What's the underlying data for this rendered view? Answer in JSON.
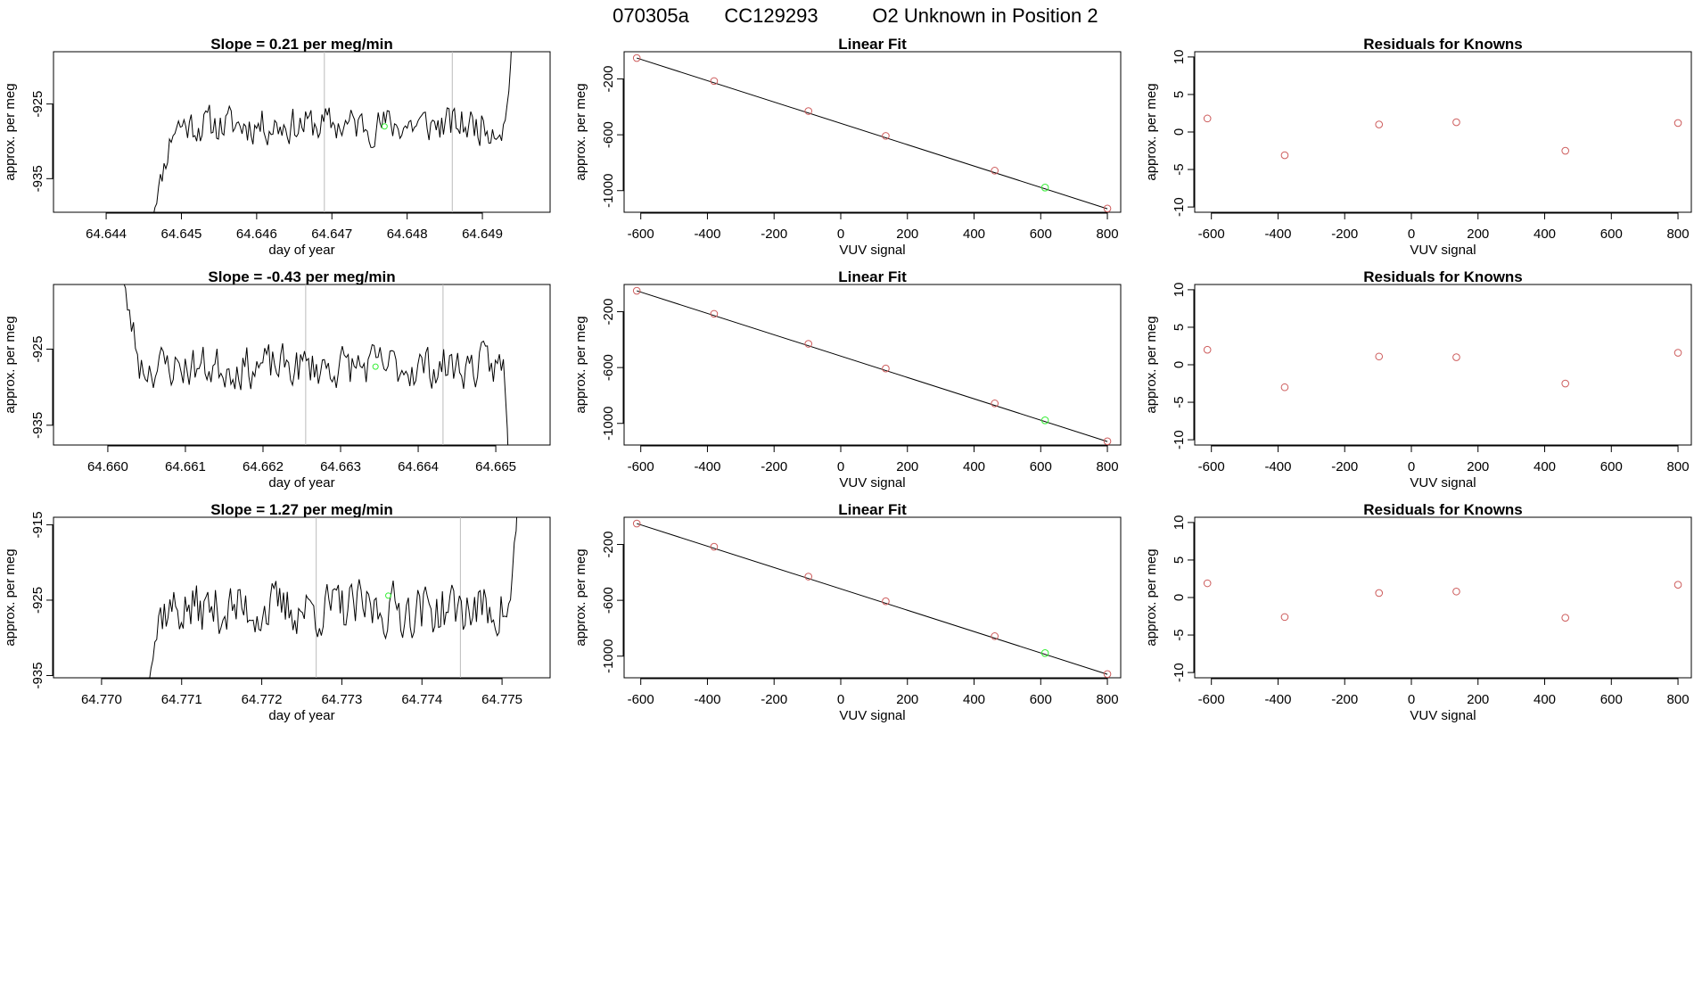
{
  "figure": {
    "title_parts": [
      "070305a",
      "CC129293",
      "O2 Unknown in Position  2"
    ]
  },
  "colors": {
    "line": "#000000",
    "known": "#cd5c5c",
    "unknown": "#33ee33",
    "gridline": "#bbbbbb"
  },
  "chart_data": [
    {
      "type": "line",
      "row": 0,
      "title": "Slope =  0.21  per meg/min",
      "xlabel": "day of year",
      "ylabel": "approx. per meg",
      "xlim": [
        64.6433,
        64.6499
      ],
      "ylim": [
        -939.5,
        -918.0
      ],
      "xticks": [
        64.644,
        64.645,
        64.646,
        64.647,
        64.648,
        64.649
      ],
      "xtick_labels": [
        "64.644",
        "64.645",
        "64.646",
        "64.647",
        "64.648",
        "64.649"
      ],
      "yticks": [
        -925,
        -935
      ],
      "ytick_labels": [
        "-925",
        "-935"
      ],
      "vlines": [
        64.6469,
        64.6486
      ],
      "marker": {
        "x": 64.6477,
        "y": -928.0
      },
      "series": {
        "start": 64.6446,
        "end": 64.6494,
        "n": 200,
        "base": -927.8,
        "amp": 1.4,
        "seed": 11,
        "pre_start": -942,
        "pre_len": 12,
        "tail_rise": 10
      }
    },
    {
      "type": "scatter",
      "row": 0,
      "title": "Linear Fit",
      "xlabel": "VUV signal",
      "ylabel": "approx. per meg",
      "xlim": [
        -650,
        840
      ],
      "ylim": [
        -1155,
        -5
      ],
      "xticks": [
        -600,
        -400,
        -200,
        0,
        200,
        400,
        600,
        800
      ],
      "xtick_labels": [
        "-600",
        "-400",
        "-200",
        "0",
        "200",
        "400",
        "600",
        "800"
      ],
      "yticks": [
        -200,
        -600,
        -1000
      ],
      "ytick_labels": [
        "-200",
        "-600",
        "-1000"
      ],
      "fit_line": {
        "x": [
          -612,
          800
        ],
        "y": [
          -50,
          -1130
        ]
      },
      "known": {
        "x": [
          -612,
          -380,
          -97,
          135,
          462,
          800
        ],
        "y": [
          -50,
          -215,
          -430,
          -608,
          -857,
          -1128
        ]
      },
      "unknown": {
        "x": [
          613
        ],
        "y": [
          -978
        ]
      }
    },
    {
      "type": "scatter",
      "row": 0,
      "title": "Residuals for Knowns",
      "xlabel": "VUV signal",
      "ylabel": "approx. per meg",
      "xlim": [
        -650,
        840
      ],
      "ylim": [
        -10.7,
        10.7
      ],
      "xticks": [
        -600,
        -400,
        -200,
        0,
        200,
        400,
        600,
        800
      ],
      "xtick_labels": [
        "-600",
        "-400",
        "-200",
        "0",
        "200",
        "400",
        "600",
        "800"
      ],
      "yticks": [
        10,
        5,
        0,
        -5,
        -10
      ],
      "ytick_labels": [
        "10",
        "5",
        "0",
        "-5",
        "-10"
      ],
      "known": {
        "x": [
          -612,
          -380,
          -97,
          135,
          462,
          800
        ],
        "y": [
          1.8,
          -3.1,
          1.0,
          1.3,
          -2.5,
          1.2
        ]
      }
    },
    {
      "type": "line",
      "row": 1,
      "title": "Slope =  -0.43  per meg/min",
      "xlabel": "day of year",
      "ylabel": "approx. per meg",
      "xlim": [
        64.6593,
        64.6657
      ],
      "ylim": [
        -937.6,
        -916.5
      ],
      "xticks": [
        64.66,
        64.661,
        64.662,
        64.663,
        64.664,
        64.665
      ],
      "xtick_labels": [
        "64.660",
        "64.661",
        "64.662",
        "64.663",
        "64.664",
        "64.665"
      ],
      "yticks": [
        -925,
        -935
      ],
      "ytick_labels": [
        "-925",
        "-935"
      ],
      "vlines": [
        64.66255,
        64.66432
      ],
      "marker": {
        "x": 64.66345,
        "y": -927.3
      },
      "series": {
        "start": 64.6601,
        "end": 64.6652,
        "n": 200,
        "base": -927.3,
        "amp": 1.6,
        "seed": 23,
        "pre_start": -910,
        "pre_len": 12,
        "tail_rise": -16
      }
    },
    {
      "type": "scatter",
      "row": 1,
      "title": "Linear Fit",
      "xlabel": "VUV signal",
      "ylabel": "approx. per meg",
      "xlim": [
        -650,
        840
      ],
      "ylim": [
        -1155,
        -5
      ],
      "xticks": [
        -600,
        -400,
        -200,
        0,
        200,
        400,
        600,
        800
      ],
      "xtick_labels": [
        "-600",
        "-400",
        "-200",
        "0",
        "200",
        "400",
        "600",
        "800"
      ],
      "yticks": [
        -200,
        -600,
        -1000
      ],
      "ytick_labels": [
        "-200",
        "-600",
        "-1000"
      ],
      "fit_line": {
        "x": [
          -612,
          800
        ],
        "y": [
          -50,
          -1130
        ]
      },
      "known": {
        "x": [
          -612,
          -380,
          -97,
          135,
          462,
          800
        ],
        "y": [
          -50,
          -215,
          -430,
          -607,
          -857,
          -1128
        ]
      },
      "unknown": {
        "x": [
          613
        ],
        "y": [
          -978
        ]
      }
    },
    {
      "type": "scatter",
      "row": 1,
      "title": "Residuals for Knowns",
      "xlabel": "VUV signal",
      "ylabel": "approx. per meg",
      "xlim": [
        -650,
        840
      ],
      "ylim": [
        -10.7,
        10.7
      ],
      "xticks": [
        -600,
        -400,
        -200,
        0,
        200,
        400,
        600,
        800
      ],
      "xtick_labels": [
        "-600",
        "-400",
        "-200",
        "0",
        "200",
        "400",
        "600",
        "800"
      ],
      "yticks": [
        10,
        5,
        0,
        -5,
        -10
      ],
      "ytick_labels": [
        "10",
        "5",
        "0",
        "-5",
        "-10"
      ],
      "known": {
        "x": [
          -612,
          -380,
          -97,
          135,
          462,
          800
        ],
        "y": [
          2.0,
          -3.0,
          1.1,
          1.0,
          -2.5,
          1.6
        ]
      }
    },
    {
      "type": "line",
      "row": 2,
      "title": "Slope =  1.27  per meg/min",
      "xlabel": "day of year",
      "ylabel": "approx. per meg",
      "xlim": [
        64.7694,
        64.7756
      ],
      "ylim": [
        -935.3,
        -914.0
      ],
      "xticks": [
        64.77,
        64.771,
        64.772,
        64.773,
        64.774,
        64.775
      ],
      "xtick_labels": [
        "64.770",
        "64.771",
        "64.772",
        "64.773",
        "64.774",
        "64.775"
      ],
      "yticks": [
        -915,
        -925,
        -935
      ],
      "ytick_labels": [
        "-915",
        "-925",
        "-935"
      ],
      "vlines": [
        64.77268,
        64.77448
      ],
      "marker": {
        "x": 64.77358,
        "y": -924.4
      },
      "series": {
        "start": 64.7705,
        "end": 64.7752,
        "n": 200,
        "base": -926.2,
        "amp": 2.0,
        "seed": 37,
        "pre_start": -940,
        "pre_len": 10,
        "tail_rise": 12
      }
    },
    {
      "type": "scatter",
      "row": 2,
      "title": "Linear Fit",
      "xlabel": "VUV signal",
      "ylabel": "approx. per meg",
      "xlim": [
        -650,
        840
      ],
      "ylim": [
        -1155,
        -5
      ],
      "xticks": [
        -600,
        -400,
        -200,
        0,
        200,
        400,
        600,
        800
      ],
      "xtick_labels": [
        "-600",
        "-400",
        "-200",
        "0",
        "200",
        "400",
        "600",
        "800"
      ],
      "yticks": [
        -200,
        -600,
        -1000
      ],
      "ytick_labels": [
        "-200",
        "-600",
        "-1000"
      ],
      "fit_line": {
        "x": [
          -612,
          800
        ],
        "y": [
          -50,
          -1130
        ]
      },
      "known": {
        "x": [
          -612,
          -380,
          -97,
          135,
          462,
          800
        ],
        "y": [
          -50,
          -216,
          -430,
          -607,
          -857,
          -1128
        ]
      },
      "unknown": {
        "x": [
          613
        ],
        "y": [
          -978
        ]
      }
    },
    {
      "type": "scatter",
      "row": 2,
      "title": "Residuals for Knowns",
      "xlabel": "VUV signal",
      "ylabel": "approx. per meg",
      "xlim": [
        -650,
        840
      ],
      "ylim": [
        -10.7,
        10.7
      ],
      "xticks": [
        -600,
        -400,
        -200,
        0,
        200,
        400,
        600,
        800
      ],
      "xtick_labels": [
        "-600",
        "-400",
        "-200",
        "0",
        "200",
        "400",
        "600",
        "800"
      ],
      "yticks": [
        10,
        5,
        0,
        -5,
        -10
      ],
      "ytick_labels": [
        "10",
        "5",
        "0",
        "-5",
        "-10"
      ],
      "known": {
        "x": [
          -612,
          -380,
          -97,
          135,
          462,
          800
        ],
        "y": [
          1.9,
          -2.6,
          0.6,
          0.8,
          -2.7,
          1.7
        ]
      }
    }
  ]
}
